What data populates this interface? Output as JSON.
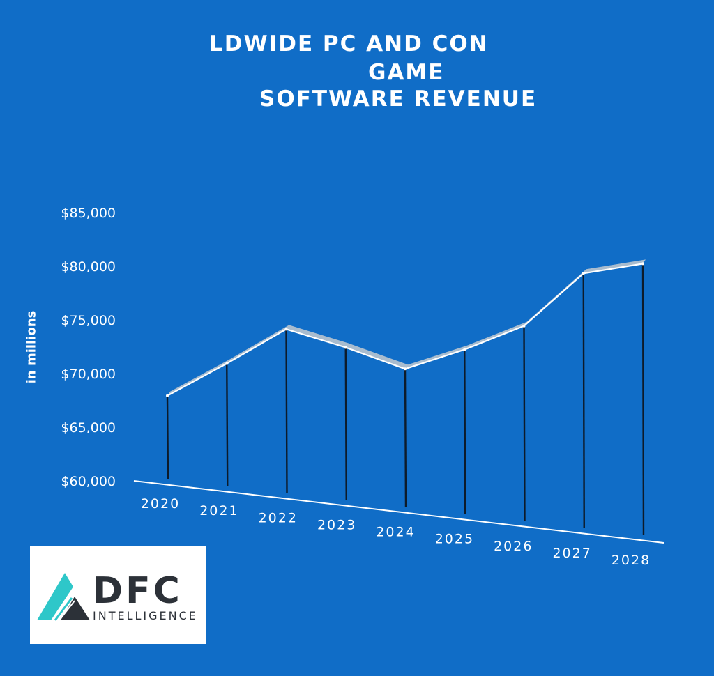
{
  "chart_data": {
    "type": "line",
    "title_lines": [
      "LDWIDE PC AND CON",
      "GAME",
      "SOFTWARE REVENUE"
    ],
    "ylabel": "in millions",
    "xlabel": "",
    "categories": [
      "2020",
      "2021",
      "2022",
      "2023",
      "2024",
      "2025",
      "2026",
      "2027",
      "2028"
    ],
    "values": [
      68000,
      71000,
      74200,
      72500,
      70500,
      72300,
      74500,
      79400,
      80300
    ],
    "y_ticks": [
      "$60,000",
      "$65,000",
      "$70,000",
      "$75,000",
      "$80,000",
      "$85,000"
    ],
    "ylim": [
      60000,
      85000
    ],
    "grid": false,
    "colors": {
      "background": "#106dc7",
      "line": "#ffffff",
      "ribbon": "#b9c4cf",
      "stem": "#0d1b2a",
      "text": "#ffffff"
    }
  },
  "logo": {
    "name": "dfc-intelligence-logo",
    "brand": "DFC",
    "subtitle": "INTELLIGENCE",
    "colors": {
      "teal": "#2ec7c9",
      "dark": "#2c3138"
    }
  }
}
